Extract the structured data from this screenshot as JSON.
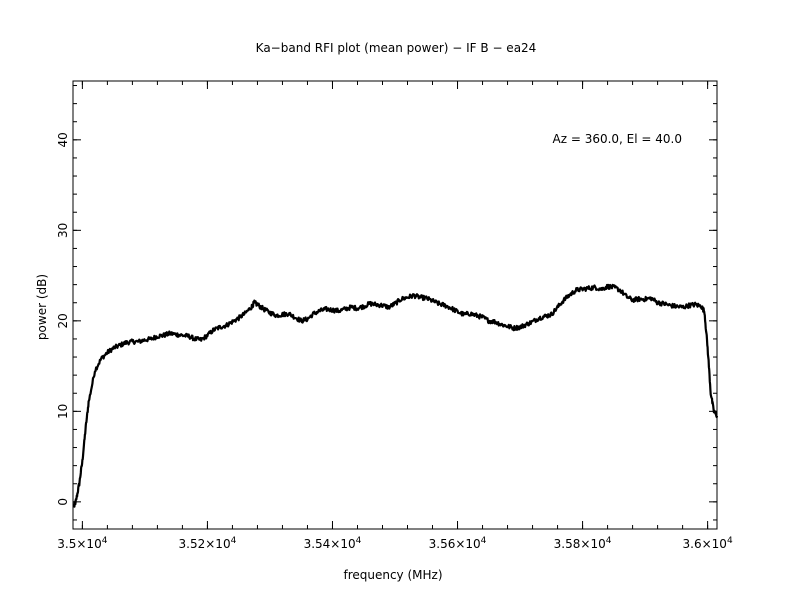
{
  "chart_data": {
    "type": "line",
    "title": "Ka−band RFI plot (mean power) − IF B − ea24",
    "annotation": "Az = 360.0, El = 40.0",
    "xlabel": "frequency (MHz)",
    "ylabel": "power (dB)",
    "xlim": [
      34985,
      36015
    ],
    "ylim": [
      -3,
      46.5
    ],
    "x_ticks": [
      {
        "value": 35000,
        "label": "3.5×10",
        "exp": "4"
      },
      {
        "value": 35200,
        "label": "3.52×10",
        "exp": "4"
      },
      {
        "value": 35400,
        "label": "3.54×10",
        "exp": "4"
      },
      {
        "value": 35600,
        "label": "3.56×10",
        "exp": "4"
      },
      {
        "value": 35800,
        "label": "3.58×10",
        "exp": "4"
      },
      {
        "value": 36000,
        "label": "3.6×10",
        "exp": "4"
      }
    ],
    "y_ticks": [
      {
        "value": 0,
        "label": "0"
      },
      {
        "value": 10,
        "label": "10"
      },
      {
        "value": 20,
        "label": "20"
      },
      {
        "value": 30,
        "label": "30"
      },
      {
        "value": 40,
        "label": "40"
      }
    ],
    "x_minor_step": 40,
    "y_minor_step": 2,
    "grid": false,
    "series": [
      {
        "x": [
          34987,
          34990,
          34995,
          35000,
          35005,
          35010,
          35020,
          35030,
          35040,
          35050,
          35060,
          35070,
          35080,
          35090,
          35100,
          35110,
          35120,
          35130,
          35140,
          35150,
          35160,
          35170,
          35180,
          35190,
          35200,
          35210,
          35220,
          35230,
          35240,
          35250,
          35260,
          35270,
          35275,
          35280,
          35290,
          35300,
          35310,
          35320,
          35330,
          35340,
          35350,
          35360,
          35370,
          35380,
          35390,
          35400,
          35410,
          35420,
          35430,
          35440,
          35450,
          35460,
          35470,
          35480,
          35490,
          35500,
          35510,
          35520,
          35530,
          35540,
          35550,
          35560,
          35570,
          35580,
          35590,
          35600,
          35610,
          35620,
          35630,
          35640,
          35650,
          35660,
          35670,
          35680,
          35690,
          35700,
          35710,
          35720,
          35730,
          35740,
          35750,
          35760,
          35770,
          35780,
          35790,
          35800,
          35810,
          35820,
          35830,
          35840,
          35850,
          35860,
          35870,
          35880,
          35890,
          35900,
          35910,
          35920,
          35930,
          35940,
          35950,
          35960,
          35970,
          35980,
          35990,
          35995,
          36000,
          36005,
          36010,
          36015
        ],
        "y": [
          -0.5,
          0.2,
          2.0,
          4.5,
          8.0,
          11.0,
          14.5,
          15.8,
          16.5,
          17.0,
          17.3,
          17.6,
          17.7,
          17.7,
          17.9,
          18.0,
          18.3,
          18.4,
          18.6,
          18.5,
          18.4,
          18.3,
          18.0,
          17.9,
          18.4,
          19.0,
          19.3,
          19.5,
          19.9,
          20.3,
          20.8,
          21.5,
          22.0,
          21.8,
          21.3,
          20.9,
          20.6,
          20.7,
          20.8,
          20.4,
          20.0,
          20.2,
          20.8,
          21.1,
          21.3,
          21.2,
          21.1,
          21.3,
          21.5,
          21.4,
          21.6,
          21.9,
          21.8,
          21.7,
          21.5,
          21.9,
          22.4,
          22.6,
          22.8,
          22.6,
          22.5,
          22.2,
          21.9,
          21.7,
          21.4,
          21.0,
          20.7,
          20.8,
          20.6,
          20.4,
          20.0,
          19.9,
          19.6,
          19.4,
          19.2,
          19.3,
          19.6,
          19.9,
          20.3,
          20.5,
          20.7,
          21.5,
          22.3,
          22.9,
          23.4,
          23.5,
          23.6,
          23.7,
          23.5,
          23.8,
          23.7,
          23.4,
          22.7,
          22.3,
          22.4,
          22.4,
          22.5,
          22.0,
          21.9,
          21.7,
          21.6,
          21.5,
          21.7,
          21.8,
          21.6,
          21.0,
          17.0,
          12.0,
          10.0,
          9.5
        ]
      }
    ]
  }
}
